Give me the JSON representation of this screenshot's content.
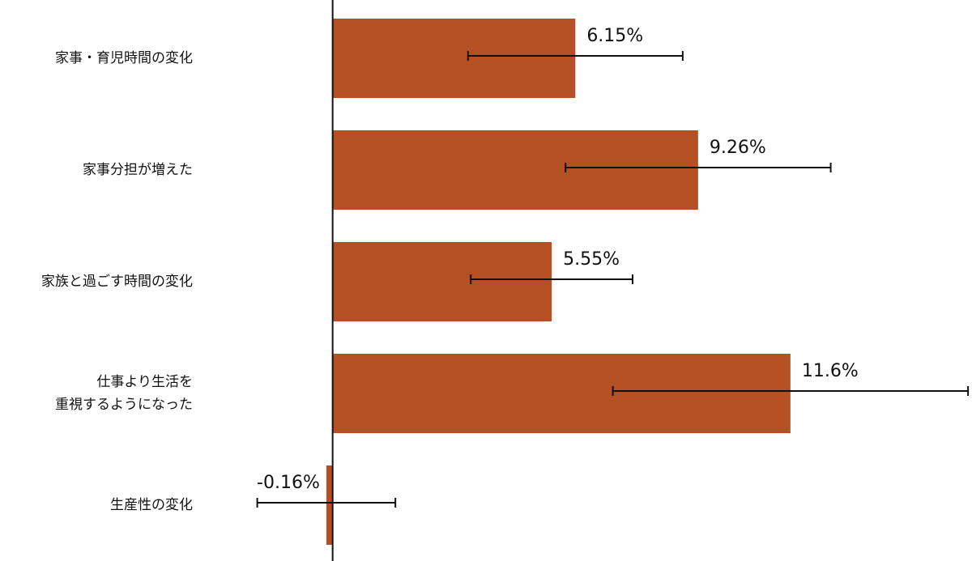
{
  "chart_data": {
    "type": "bar",
    "orientation": "horizontal",
    "categories": [
      "家事・育児時間の変化",
      "家事分担が増えた",
      "家族と過ごす時間の変化",
      "仕事より生活を\n重視するようになった",
      "生産性の変化"
    ],
    "values": [
      6.15,
      9.26,
      5.55,
      11.6,
      -0.16
    ],
    "value_labels": [
      "6.15%",
      "9.26%",
      "5.55%",
      "11.6%",
      "-0.16%"
    ],
    "errors": [
      2.72,
      3.36,
      2.05,
      4.5,
      1.75
    ],
    "color": "#b45023",
    "xlim": [
      -3.4,
      16.2
    ]
  }
}
